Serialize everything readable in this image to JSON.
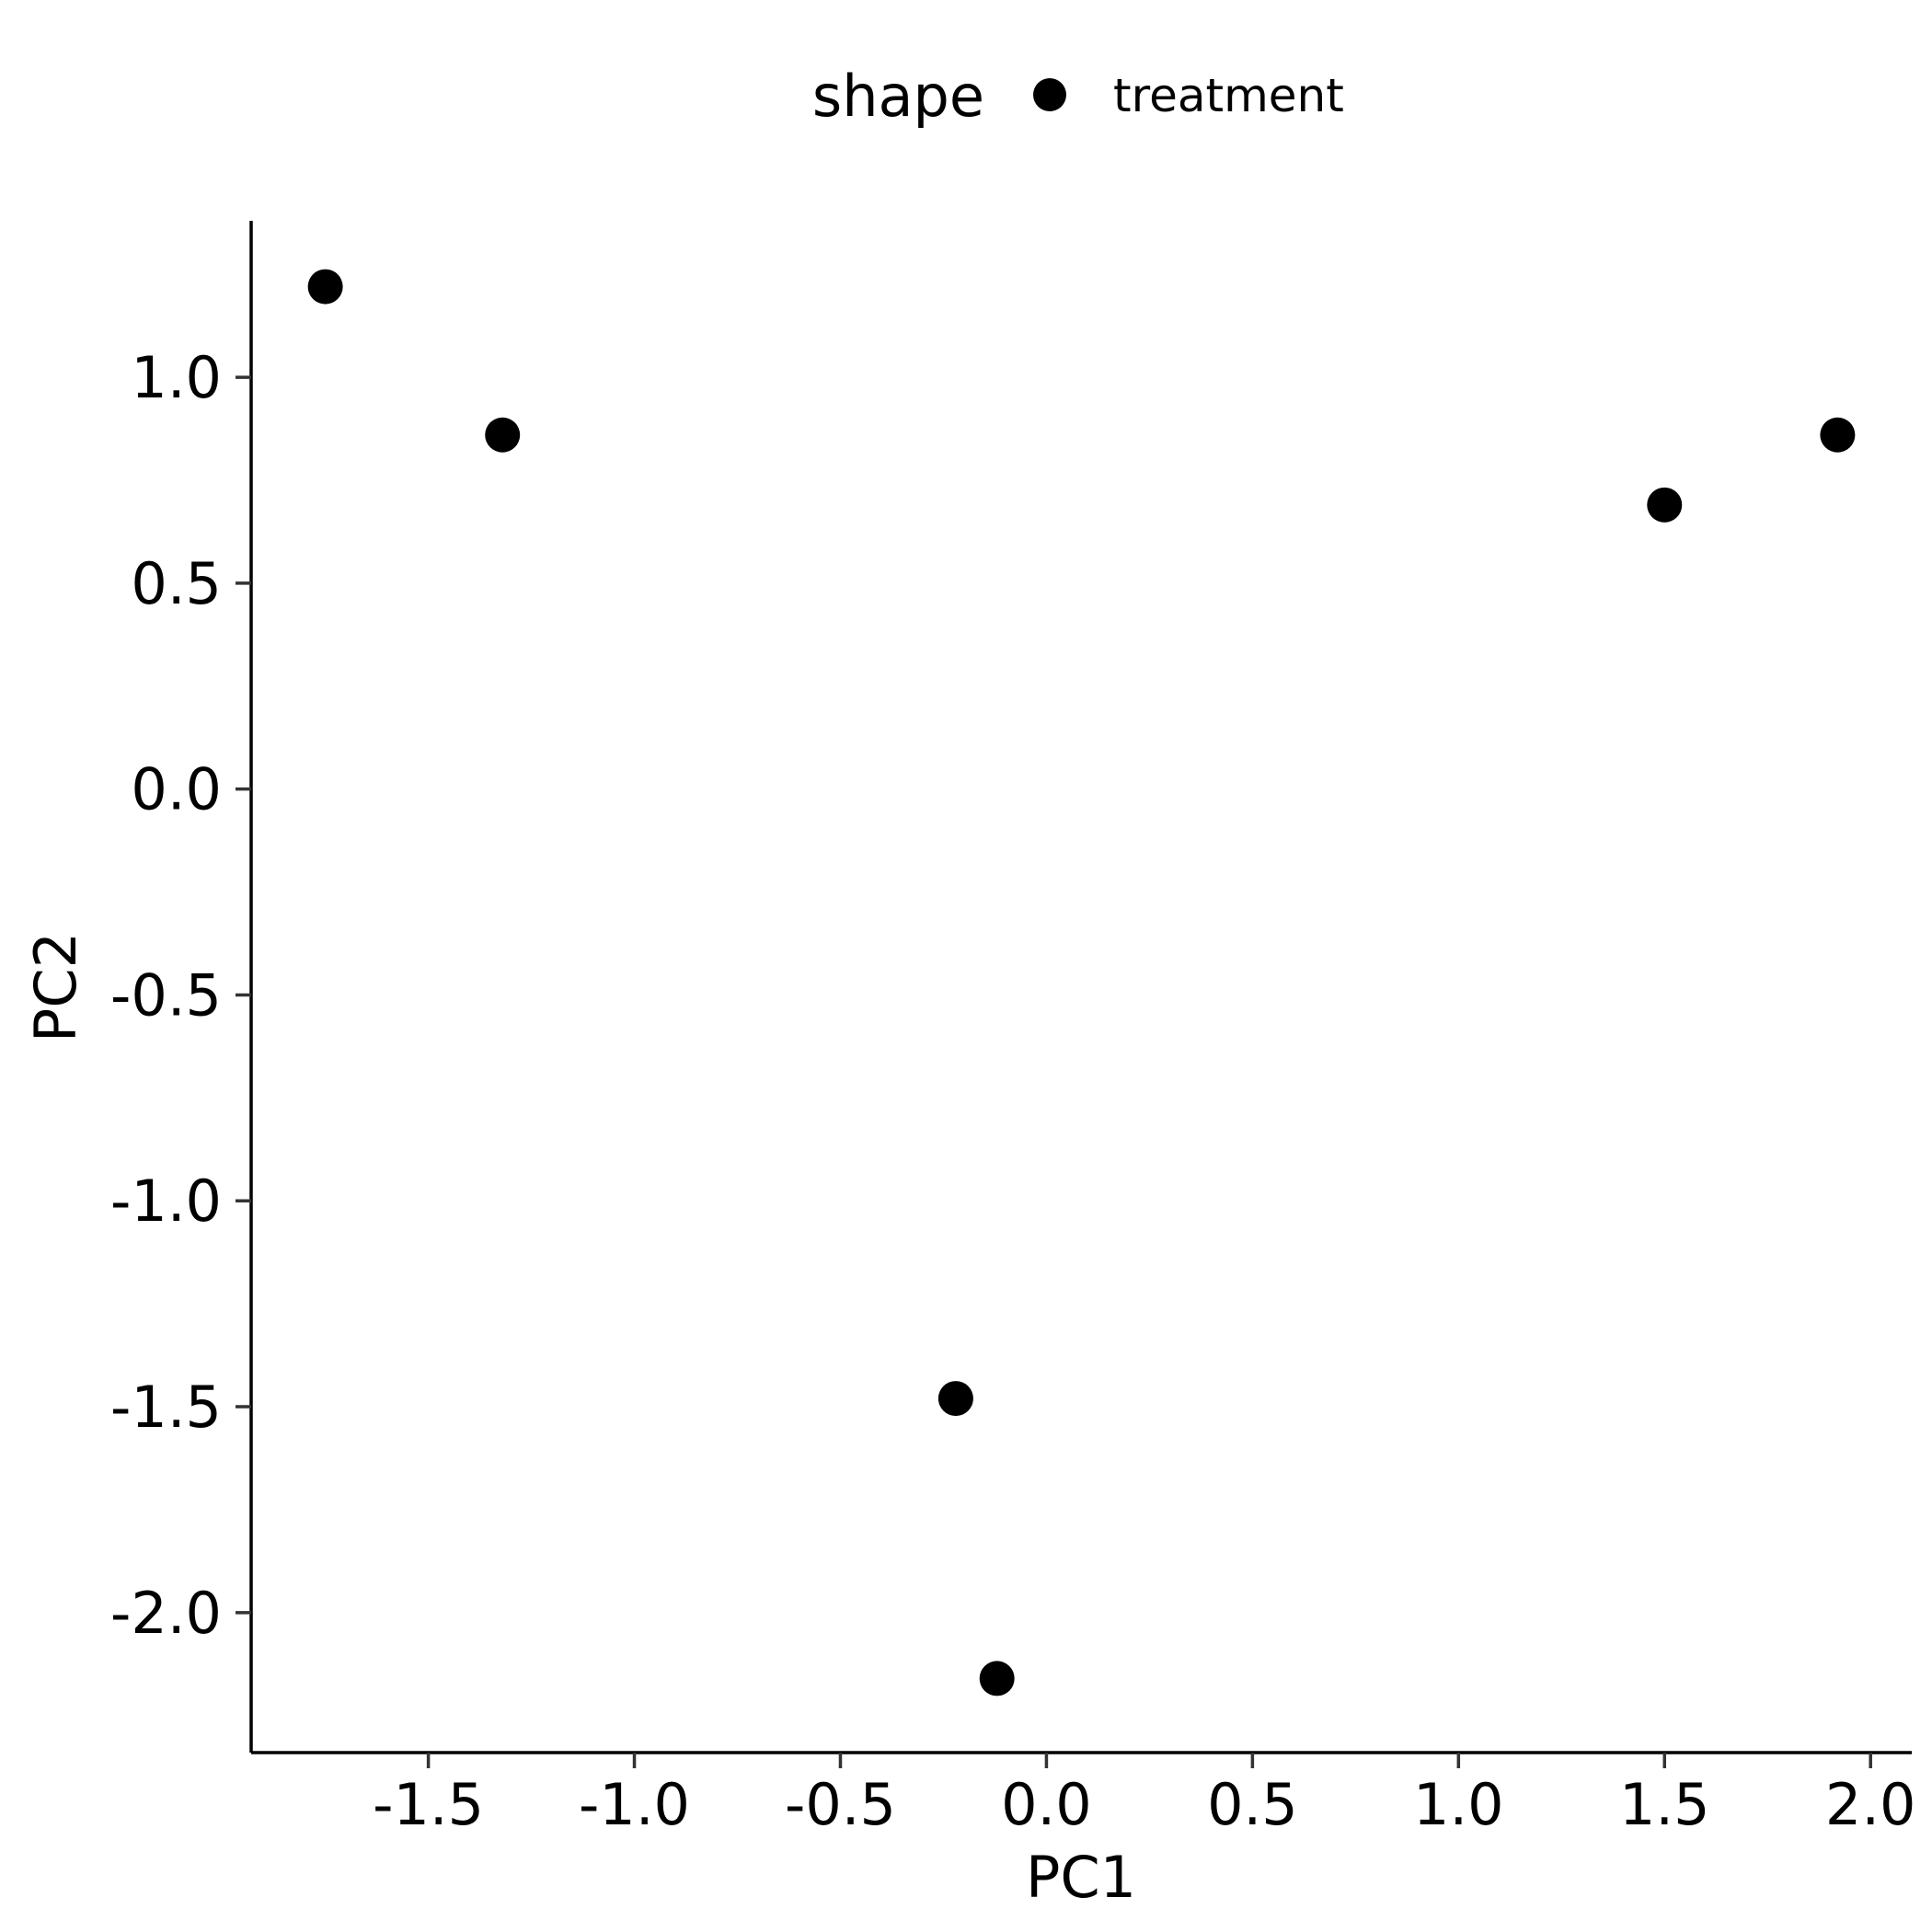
{
  "chart_data": {
    "type": "scatter",
    "xlabel": "PC1",
    "ylabel": "PC2",
    "xlim": [
      -1.93,
      2.1
    ],
    "ylim": [
      -2.34,
      1.38
    ],
    "xticks": [
      -1.5,
      -1.0,
      -0.5,
      0.0,
      0.5,
      1.0,
      1.5,
      2.0
    ],
    "xtick_labels": [
      "-1.5",
      "-1.0",
      "-0.5",
      "0.0",
      "0.5",
      "1.0",
      "1.5",
      "2.0"
    ],
    "yticks": [
      1.0,
      0.5,
      0.0,
      -0.5,
      -1.0,
      -1.5,
      -2.0
    ],
    "ytick_labels": [
      "1.0",
      "0.5",
      "0.0",
      "-0.5",
      "-1.0",
      "-1.5",
      "-2.0"
    ],
    "grid": false,
    "legend": {
      "placement": "top",
      "title": "shape",
      "entries": [
        "treatment"
      ]
    },
    "point_color": "#000000",
    "series": [
      {
        "name": "treatment",
        "points": [
          {
            "x": -1.75,
            "y": 1.22
          },
          {
            "x": -1.32,
            "y": 0.86
          },
          {
            "x": -0.22,
            "y": -1.48
          },
          {
            "x": -0.12,
            "y": -2.16
          },
          {
            "x": 1.5,
            "y": 0.69
          },
          {
            "x": 1.92,
            "y": 0.86
          }
        ]
      }
    ]
  }
}
